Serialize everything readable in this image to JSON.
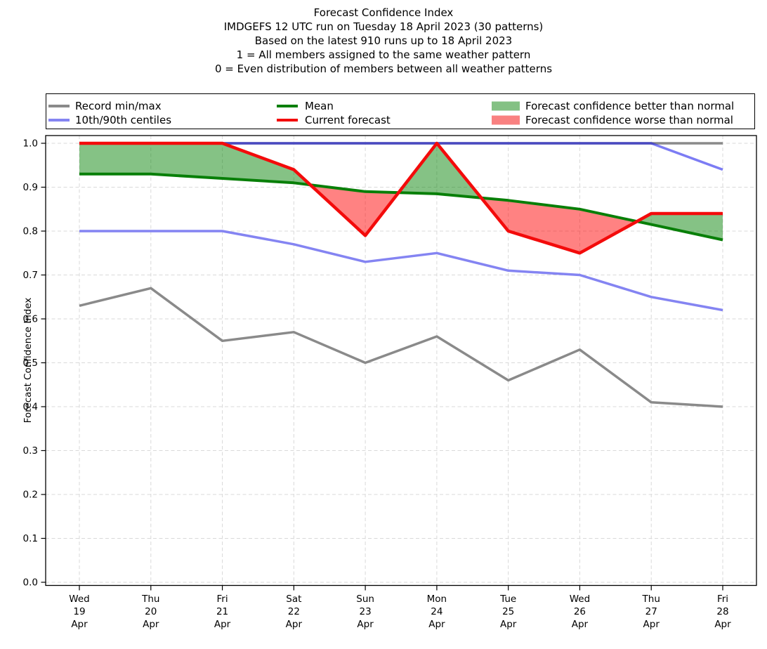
{
  "title": {
    "line1": "Forecast Confidence Index",
    "line2": "IMDGEFS 12 UTC run on Tuesday 18 April 2023 (30 patterns)",
    "line3": "Based on the latest 910 runs up to 18 April 2023",
    "line4": "1 = All members assigned to the same weather pattern",
    "line5": "0 = Even distribution of members between all weather patterns"
  },
  "legend": {
    "entries": [
      {
        "label": "Record min/max",
        "swatch": "line",
        "color": "#8a8a8a"
      },
      {
        "label": "10th/90th centiles",
        "swatch": "line",
        "color": "#8484f2"
      },
      {
        "label": "Mean",
        "swatch": "line",
        "color": "#087f08"
      },
      {
        "label": "Current forecast",
        "swatch": "line",
        "color": "#f30b0b"
      },
      {
        "label": "Forecast confidence better than normal",
        "swatch": "patch",
        "color": "#84c184"
      },
      {
        "label": "Forecast confidence worse than normal",
        "swatch": "patch",
        "color": "#f98181"
      }
    ]
  },
  "chart_data": {
    "type": "line",
    "title": "Forecast Confidence Index",
    "xlabel": "",
    "ylabel": "Forecast Confidence Index",
    "ylim": [
      0.0,
      1.0
    ],
    "yticks": [
      0.0,
      0.1,
      0.2,
      0.3,
      0.4,
      0.5,
      0.6,
      0.7,
      0.8,
      0.9,
      1.0
    ],
    "grid": true,
    "grid_color": "#d9d9d9",
    "legend_position": "top",
    "categories": [
      {
        "weekday": "Wed",
        "day": "19",
        "month": "Apr"
      },
      {
        "weekday": "Thu",
        "day": "20",
        "month": "Apr"
      },
      {
        "weekday": "Fri",
        "day": "21",
        "month": "Apr"
      },
      {
        "weekday": "Sat",
        "day": "22",
        "month": "Apr"
      },
      {
        "weekday": "Sun",
        "day": "23",
        "month": "Apr"
      },
      {
        "weekday": "Mon",
        "day": "24",
        "month": "Apr"
      },
      {
        "weekday": "Tue",
        "day": "25",
        "month": "Apr"
      },
      {
        "weekday": "Wed",
        "day": "26",
        "month": "Apr"
      },
      {
        "weekday": "Thu",
        "day": "27",
        "month": "Apr"
      },
      {
        "weekday": "Fri",
        "day": "28",
        "month": "Apr"
      }
    ],
    "series": [
      {
        "name": "Record max",
        "legend": "Record min/max",
        "color": "#8a8a8a",
        "width": 3.5,
        "values": [
          1.0,
          1.0,
          1.0,
          1.0,
          1.0,
          1.0,
          1.0,
          1.0,
          1.0,
          1.0
        ]
      },
      {
        "name": "Record min",
        "legend": "Record min/max",
        "color": "#8a8a8a",
        "width": 3.5,
        "values": [
          0.63,
          0.67,
          0.55,
          0.57,
          0.5,
          0.56,
          0.46,
          0.53,
          0.41,
          0.4
        ]
      },
      {
        "name": "90th centile",
        "legend": "10th/90th centiles",
        "color": "#8484f2",
        "draw_color": "rgba(25,25,235,0.57)",
        "width": 3.5,
        "values": [
          1.0,
          1.0,
          1.0,
          1.0,
          1.0,
          1.0,
          1.0,
          1.0,
          1.0,
          0.94
        ]
      },
      {
        "name": "10th centile",
        "legend": "10th/90th centiles",
        "color": "#8484f2",
        "width": 3.5,
        "values": [
          0.8,
          0.8,
          0.8,
          0.77,
          0.73,
          0.75,
          0.71,
          0.7,
          0.65,
          0.62
        ]
      },
      {
        "name": "Mean",
        "legend": "Mean",
        "color": "#087f08",
        "width": 4,
        "values": [
          0.93,
          0.93,
          0.92,
          0.91,
          0.89,
          0.885,
          0.87,
          0.85,
          0.815,
          0.78
        ]
      },
      {
        "name": "Current forecast",
        "legend": "Current forecast",
        "color": "#f30b0b",
        "width": 4.5,
        "values": [
          1.0,
          1.0,
          1.0,
          0.94,
          0.79,
          1.0,
          0.8,
          0.75,
          0.84,
          0.84
        ]
      }
    ],
    "fills": {
      "better": {
        "label": "Forecast confidence better than normal",
        "color": "rgba(0,128,0,0.48)"
      },
      "worse": {
        "label": "Forecast confidence worse than normal",
        "color": "rgba(255,0,0,0.49)"
      }
    }
  }
}
